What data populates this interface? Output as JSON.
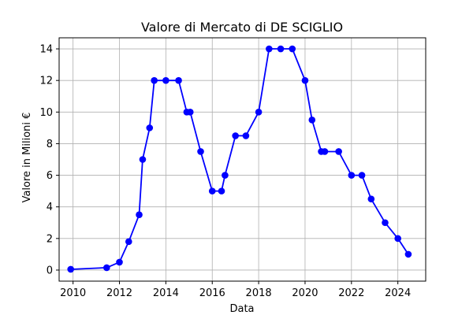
{
  "chart_data": {
    "type": "line",
    "title": "Valore di Mercato di DE SCIGLIO",
    "xlabel": "Data",
    "ylabel": "Valore in Milioni €",
    "grid": true,
    "xlim": [
      2009.4,
      2025.2
    ],
    "ylim": [
      -0.7,
      14.7
    ],
    "xticks": [
      2010,
      2012,
      2014,
      2016,
      2018,
      2020,
      2022,
      2024
    ],
    "yticks": [
      0,
      2,
      4,
      6,
      8,
      10,
      12,
      14
    ],
    "series": [
      {
        "color": "#0000ff",
        "marker": "circle",
        "x": [
          2009.9,
          2011.45,
          2012.0,
          2012.4,
          2012.85,
          2013.0,
          2013.3,
          2013.5,
          2014.0,
          2014.55,
          2014.9,
          2015.05,
          2015.5,
          2016.0,
          2016.4,
          2016.55,
          2017.0,
          2017.45,
          2018.0,
          2018.45,
          2018.95,
          2019.45,
          2020.0,
          2020.3,
          2020.7,
          2020.85,
          2021.45,
          2022.0,
          2022.45,
          2022.85,
          2023.45,
          2024.0,
          2024.45
        ],
        "y": [
          0.05,
          0.15,
          0.5,
          1.8,
          3.5,
          7,
          9,
          12,
          12,
          12,
          10,
          10,
          7.5,
          5,
          5,
          6,
          8.5,
          8.5,
          10,
          14,
          14,
          14,
          12,
          9.5,
          7.5,
          7.5,
          7.5,
          6,
          6,
          4.5,
          3,
          2,
          1
        ]
      }
    ]
  }
}
